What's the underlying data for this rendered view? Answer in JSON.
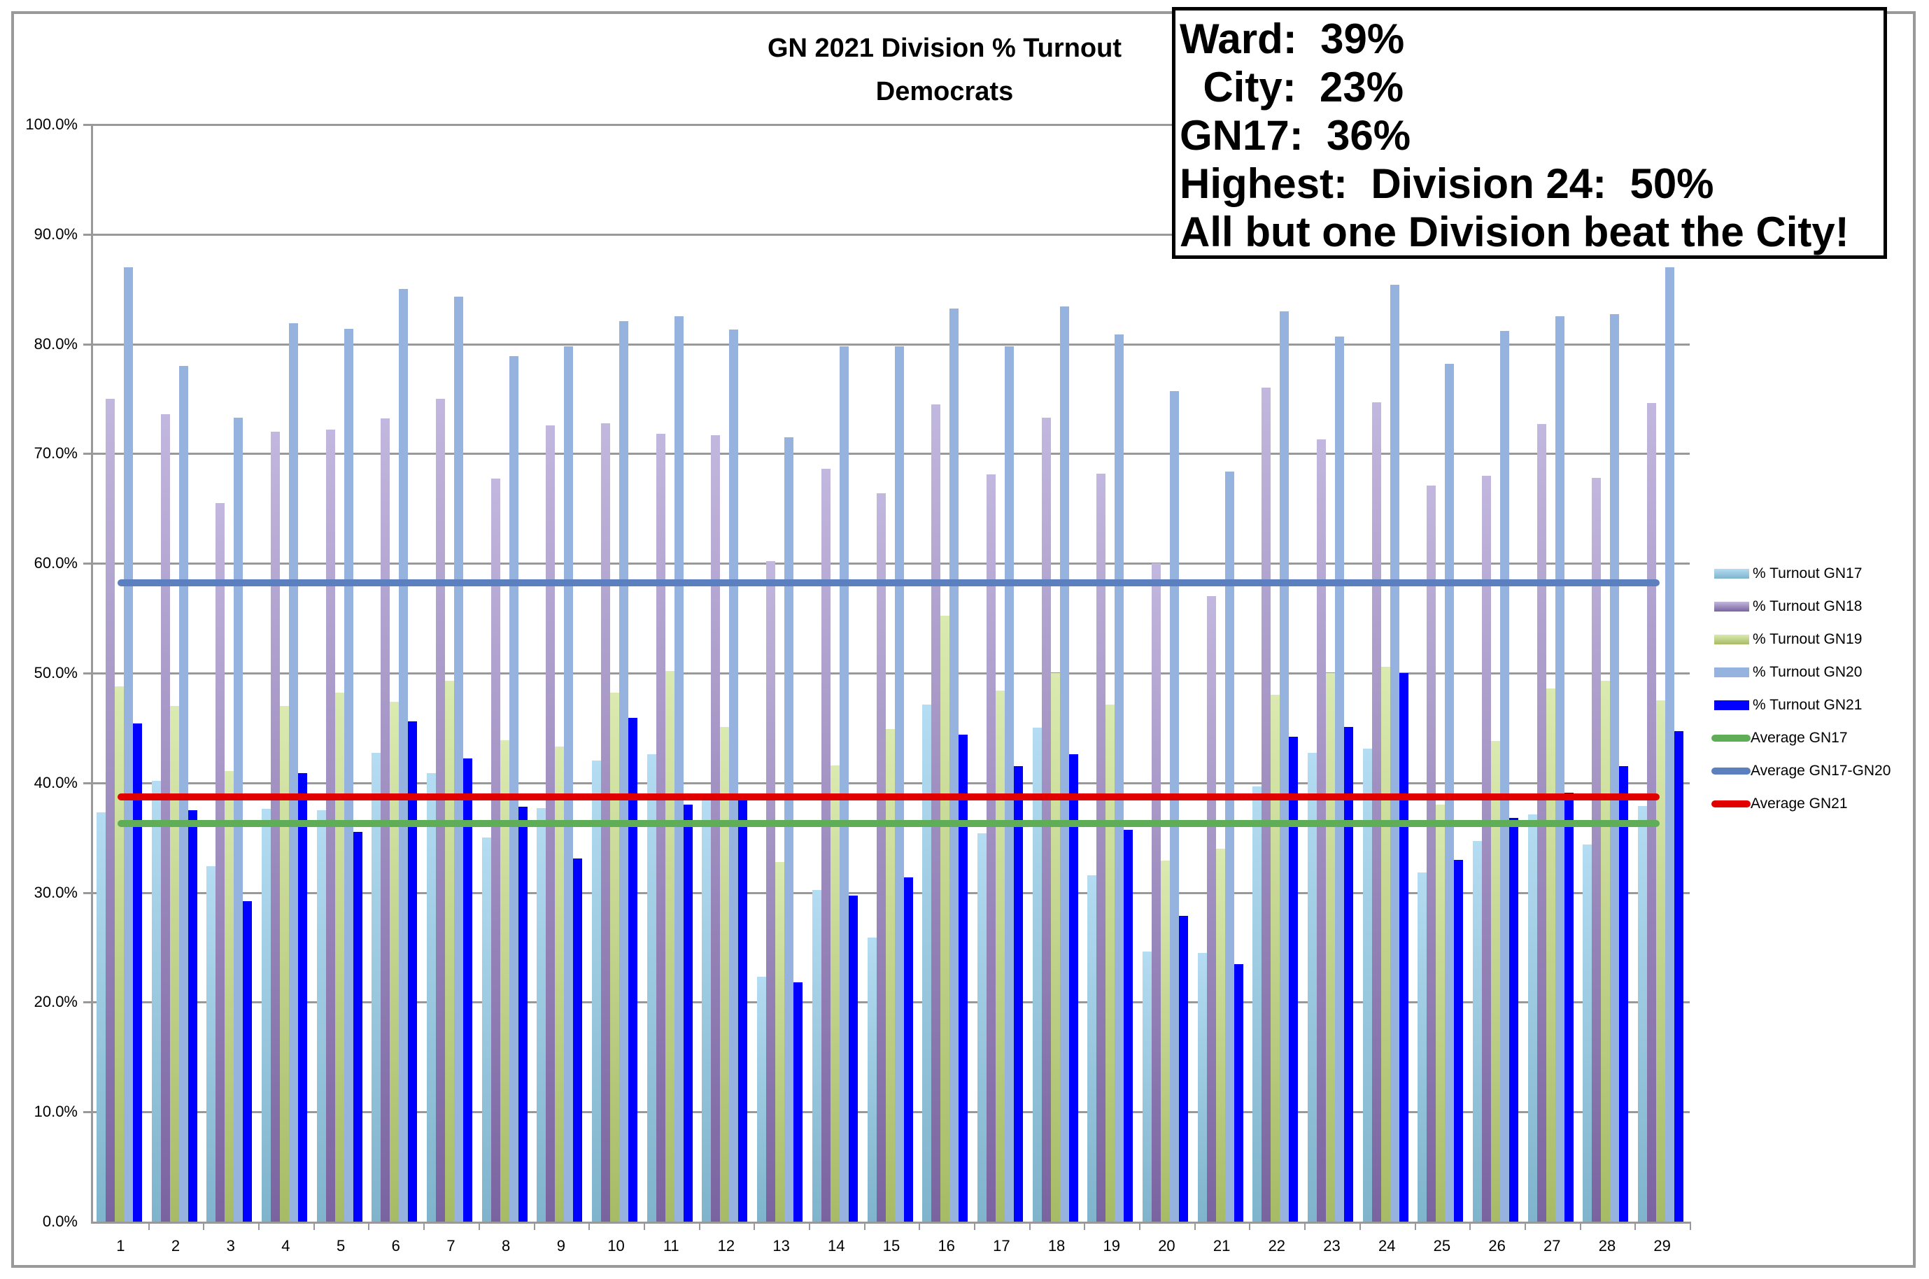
{
  "chart_data": {
    "type": "bar",
    "title": "GN 2021 Division % Turnout",
    "subtitle": "Democrats",
    "xlabel": "",
    "ylabel": "",
    "ylim": [
      0,
      100
    ],
    "yticks": [
      "0.0%",
      "10.0%",
      "20.0%",
      "30.0%",
      "40.0%",
      "50.0%",
      "60.0%",
      "70.0%",
      "80.0%",
      "90.0%",
      "100.0%"
    ],
    "grid": true,
    "legend_position": "right",
    "categories": [
      "1",
      "2",
      "3",
      "4",
      "5",
      "6",
      "7",
      "8",
      "9",
      "10",
      "11",
      "12",
      "13",
      "14",
      "15",
      "16",
      "17",
      "18",
      "19",
      "20",
      "21",
      "22",
      "23",
      "24",
      "25",
      "26",
      "27",
      "28",
      "29"
    ],
    "series": [
      {
        "name": "% Turnout GN17",
        "color": "#a9d4ec",
        "values": [
          37.3,
          40.2,
          32.4,
          37.6,
          37.5,
          42.7,
          40.9,
          35.0,
          37.7,
          42.0,
          42.6,
          38.5,
          22.3,
          30.2,
          25.9,
          47.1,
          35.4,
          45.0,
          31.6,
          24.6,
          24.5,
          39.7,
          42.7,
          43.1,
          31.8,
          34.7,
          37.1,
          34.4,
          37.9
        ]
      },
      {
        "name": "% Turnout GN18",
        "color": "#b6a9d4",
        "values": [
          75.0,
          73.6,
          65.5,
          72.0,
          72.2,
          73.2,
          75.0,
          67.7,
          72.6,
          72.8,
          71.8,
          71.7,
          60.2,
          68.6,
          66.4,
          74.5,
          68.1,
          73.3,
          68.2,
          60.0,
          57.0,
          76.0,
          71.3,
          74.7,
          67.1,
          68.0,
          72.7,
          67.8,
          74.6
        ]
      },
      {
        "name": "% Turnout GN19",
        "color": "#d3e4a4",
        "values": [
          48.8,
          47.0,
          41.1,
          47.0,
          48.2,
          47.4,
          49.3,
          43.9,
          43.3,
          48.2,
          50.2,
          45.1,
          32.8,
          41.6,
          44.9,
          55.2,
          48.4,
          50.0,
          47.1,
          32.9,
          34.0,
          48.0,
          50.0,
          50.6,
          38.0,
          43.8,
          48.6,
          49.3,
          47.5
        ]
      },
      {
        "name": "% Turnout GN20",
        "color": "#96b3e0",
        "values": [
          87.0,
          78.0,
          73.3,
          81.9,
          81.4,
          85.0,
          84.3,
          78.9,
          79.8,
          82.1,
          82.5,
          81.3,
          71.5,
          79.8,
          79.8,
          83.2,
          79.8,
          83.4,
          80.9,
          75.7,
          68.4,
          83.0,
          80.7,
          85.4,
          78.2,
          81.2,
          82.5,
          82.7,
          87.0
        ]
      },
      {
        "name": "% Turnout GN21",
        "color": "#0000ff",
        "values": [
          45.4,
          37.5,
          29.2,
          40.9,
          35.5,
          45.6,
          42.2,
          37.8,
          33.1,
          45.9,
          38.0,
          38.6,
          21.8,
          29.7,
          31.4,
          44.4,
          41.5,
          42.6,
          35.7,
          27.9,
          23.5,
          44.2,
          45.1,
          50.0,
          33.0,
          36.8,
          39.1,
          41.5,
          44.7
        ]
      }
    ],
    "lines": [
      {
        "name": "Average GN17",
        "color": "#5fad56",
        "value": 36.3
      },
      {
        "name": "Average GN17-GN20",
        "color": "#5b7fbf",
        "value": 58.2
      },
      {
        "name": "Average GN21",
        "color": "#e00000",
        "value": 38.7
      }
    ]
  },
  "callout": {
    "lines": [
      "Ward:  39%",
      "  City:  23%",
      "GN17:  36%",
      "Highest:  Division 24:  50%",
      "All but one Division beat the City!"
    ]
  }
}
